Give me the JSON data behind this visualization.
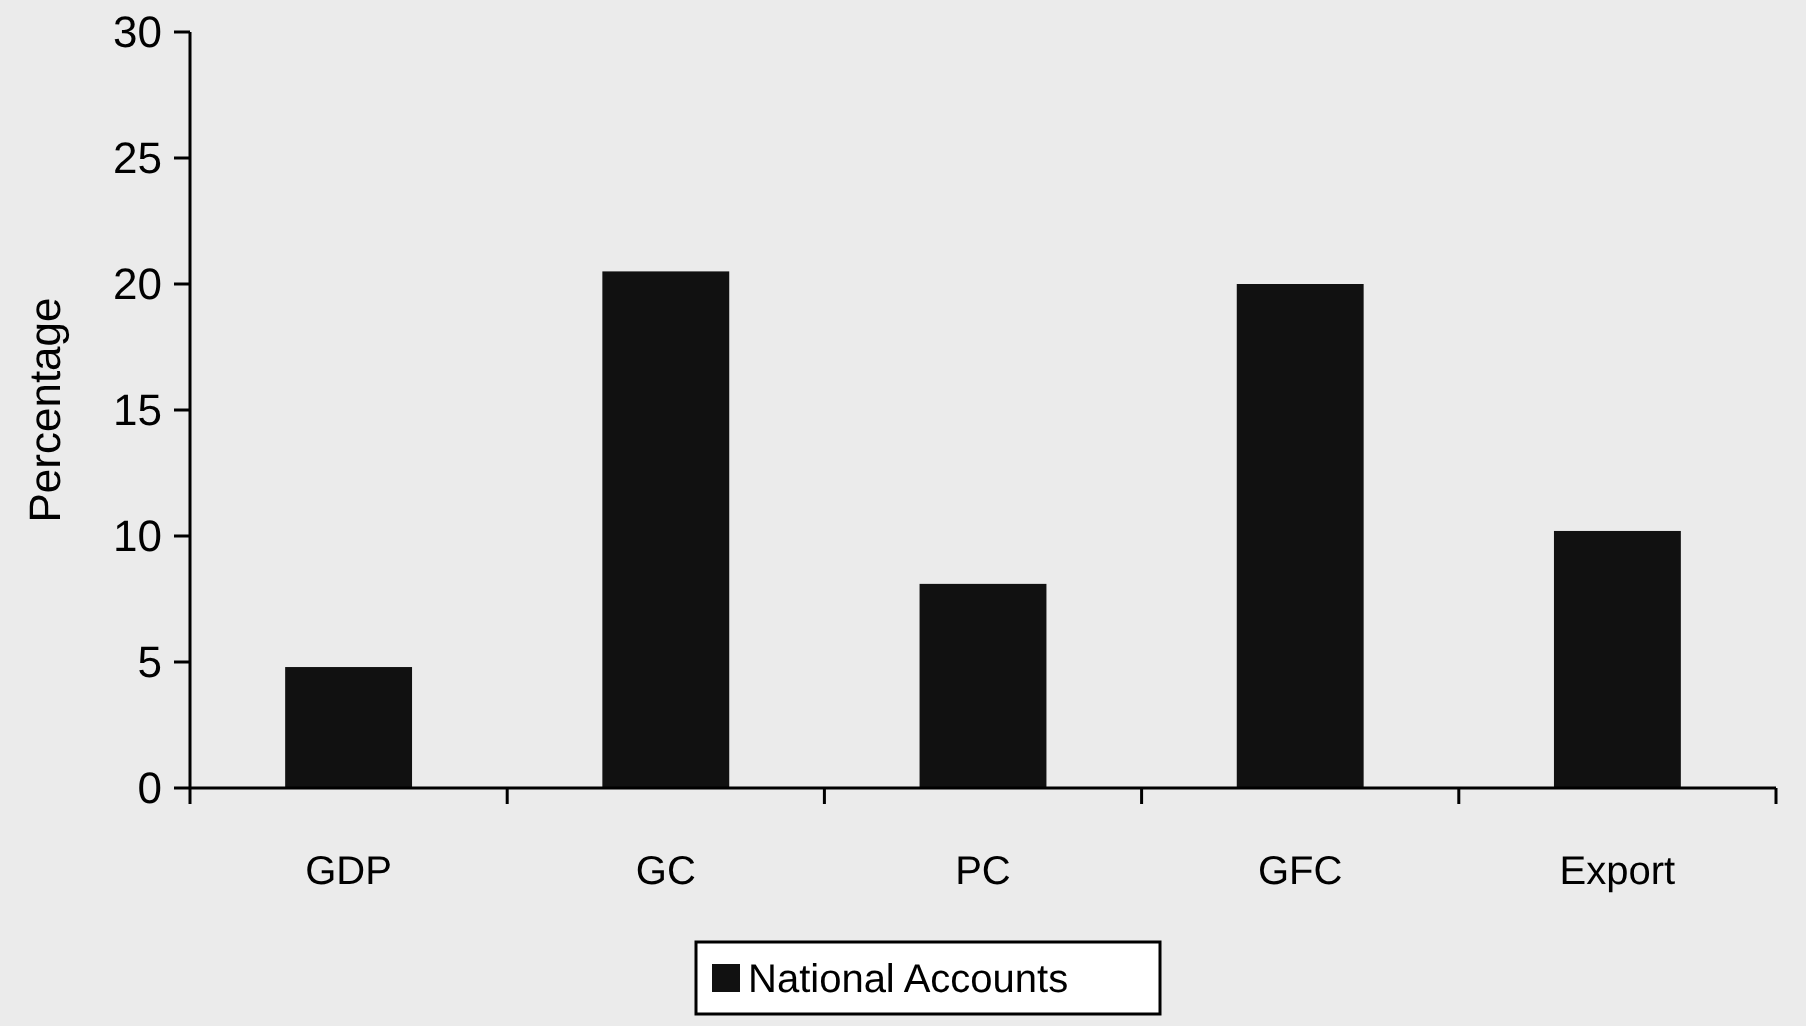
{
  "chart_data": {
    "type": "bar",
    "ylabel": "Percentage",
    "categories": [
      "GDP",
      "GC",
      "PC",
      "GFC",
      "Export"
    ],
    "series": [
      {
        "name": "National Accounts",
        "color": "#111111",
        "values": [
          4.8,
          20.5,
          8.1,
          20.0,
          10.2
        ]
      }
    ],
    "ylim": [
      0,
      30
    ],
    "yticks": [
      0,
      5,
      10,
      15,
      20,
      25,
      30
    ],
    "legend": "bottom",
    "grid": false
  }
}
